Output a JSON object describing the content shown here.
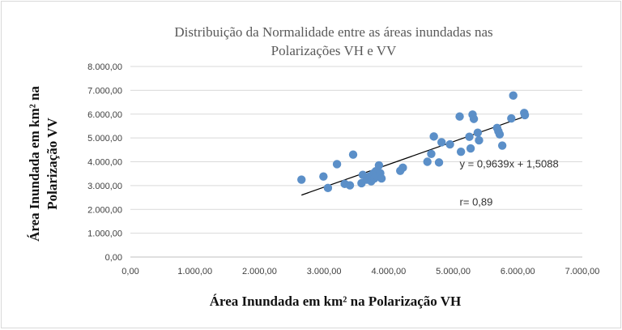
{
  "chart_data": {
    "type": "scatter",
    "title_lines": [
      "Distribuição da Normalidade entre as áreas inundadas nas",
      "Polarizações VH e VV"
    ],
    "xlabel": "Área Inundada em km² na Polarização VH",
    "ylabel_lines": [
      "Área Inundada em km² na",
      "Polarização  VV"
    ],
    "xlim": [
      0,
      7000
    ],
    "ylim": [
      0,
      8000
    ],
    "x_ticks": [
      0,
      1000,
      2000,
      3000,
      4000,
      5000,
      6000,
      7000
    ],
    "y_ticks": [
      0,
      1000,
      2000,
      3000,
      4000,
      5000,
      6000,
      7000,
      8000
    ],
    "x_tick_labels": [
      "0,00",
      "1.000,00",
      "2.000,00",
      "3.000,00",
      "4.000,00",
      "5.000,00",
      "6.000,00",
      "7.000,00"
    ],
    "y_tick_labels": [
      "0,00",
      "1.000,00",
      "2.000,00",
      "3.000,00",
      "4.000,00",
      "5.000,00",
      "6.000,00",
      "7.000,00",
      "8.000,00"
    ],
    "grid": "horizontal",
    "marker_color": "#5b8fc8",
    "line_color": "#000000",
    "points": [
      {
        "x": 2650,
        "y": 3250
      },
      {
        "x": 2990,
        "y": 3380
      },
      {
        "x": 3060,
        "y": 2900
      },
      {
        "x": 3200,
        "y": 3900
      },
      {
        "x": 3320,
        "y": 3070
      },
      {
        "x": 3400,
        "y": 3010
      },
      {
        "x": 3450,
        "y": 4300
      },
      {
        "x": 3580,
        "y": 3100
      },
      {
        "x": 3600,
        "y": 3450
      },
      {
        "x": 3660,
        "y": 3250
      },
      {
        "x": 3700,
        "y": 3380
      },
      {
        "x": 3730,
        "y": 3180
      },
      {
        "x": 3760,
        "y": 3500
      },
      {
        "x": 3780,
        "y": 3300
      },
      {
        "x": 3800,
        "y": 3600
      },
      {
        "x": 3820,
        "y": 3400
      },
      {
        "x": 3850,
        "y": 3850
      },
      {
        "x": 3870,
        "y": 3520
      },
      {
        "x": 3890,
        "y": 3300
      },
      {
        "x": 4180,
        "y": 3620
      },
      {
        "x": 4220,
        "y": 3750
      },
      {
        "x": 4600,
        "y": 4000
      },
      {
        "x": 4660,
        "y": 4330
      },
      {
        "x": 4700,
        "y": 5060
      },
      {
        "x": 4780,
        "y": 3970
      },
      {
        "x": 4820,
        "y": 4820
      },
      {
        "x": 4950,
        "y": 4730
      },
      {
        "x": 5100,
        "y": 5900
      },
      {
        "x": 5120,
        "y": 4420
      },
      {
        "x": 5250,
        "y": 5050
      },
      {
        "x": 5270,
        "y": 4560
      },
      {
        "x": 5300,
        "y": 5980
      },
      {
        "x": 5320,
        "y": 5800
      },
      {
        "x": 5380,
        "y": 5220
      },
      {
        "x": 5400,
        "y": 4900
      },
      {
        "x": 5680,
        "y": 5420
      },
      {
        "x": 5700,
        "y": 5280
      },
      {
        "x": 5720,
        "y": 5150
      },
      {
        "x": 5760,
        "y": 4680
      },
      {
        "x": 5900,
        "y": 5820
      },
      {
        "x": 5930,
        "y": 6780
      },
      {
        "x": 6100,
        "y": 6050
      },
      {
        "x": 6110,
        "y": 5960
      }
    ],
    "trendline": {
      "x_start": 2650,
      "y_start": 2600,
      "x_end": 6110,
      "y_end": 5900
    },
    "annotations": [
      {
        "text": "y = 0,9639x + 1,5088",
        "x": 5100,
        "y": 3900
      },
      {
        "text": "r= 0,89",
        "x": 5100,
        "y": 2300
      }
    ]
  }
}
